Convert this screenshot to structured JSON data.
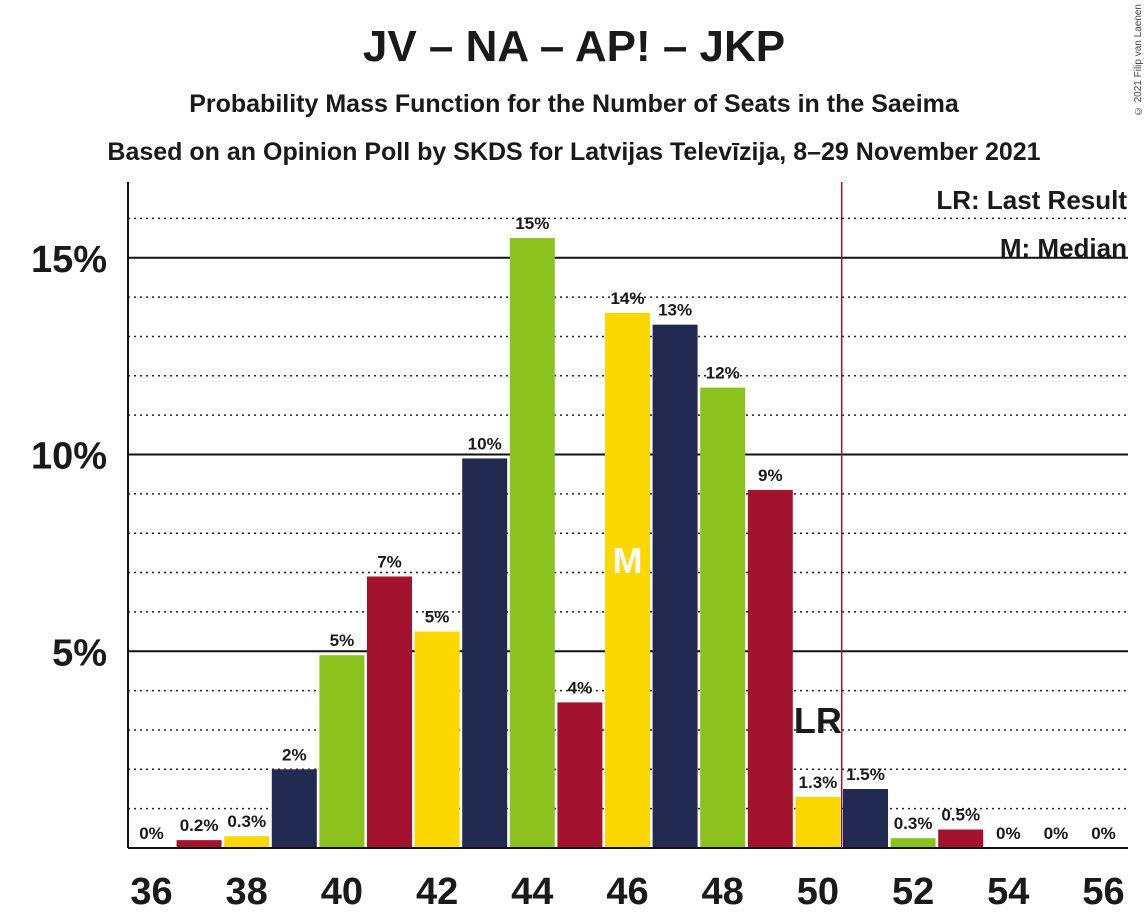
{
  "title": "JV – NA – AP! – JKP",
  "subtitle": "Probability Mass Function for the Number of Seats in the Saeima",
  "subtitle2": "Based on an Opinion Poll by SKDS for Latvijas Televīzija, 8–29 November 2021",
  "copyright": "© 2021 Filip van Laenen",
  "legend": {
    "last_result": "LR: Last Result",
    "median": "M: Median"
  },
  "markers": {
    "median_label": "M",
    "median_seat": 46,
    "last_result_label": "LR",
    "last_result_seat": 50
  },
  "colors": {
    "navy": "#232a52",
    "green": "#8bc21e",
    "crimson": "#a31330",
    "yellow": "#fcd800",
    "lr_line": "#a31330"
  },
  "chart_data": {
    "type": "bar",
    "x": [
      36,
      37,
      38,
      39,
      40,
      41,
      42,
      43,
      44,
      45,
      46,
      47,
      48,
      49,
      50,
      51,
      52,
      53,
      54,
      55,
      56
    ],
    "values": [
      0,
      0.2,
      0.3,
      2.0,
      4.9,
      6.9,
      5.5,
      9.9,
      15.5,
      3.7,
      13.6,
      13.3,
      11.7,
      9.1,
      1.3,
      1.5,
      0.25,
      0.47,
      0,
      0,
      0
    ],
    "value_labels": [
      "0%",
      "0.2%",
      "0.3%",
      "2%",
      "5%",
      "7%",
      "5%",
      "10%",
      "15%",
      "4%",
      "14%",
      "13%",
      "12%",
      "9%",
      "1.3%",
      "1.5%",
      "0.3%",
      "0.5%",
      "0%",
      "0%",
      "0%"
    ],
    "bar_colors": [
      "navy",
      "crimson",
      "yellow",
      "navy",
      "green",
      "crimson",
      "yellow",
      "navy",
      "green",
      "crimson",
      "yellow",
      "navy",
      "green",
      "crimson",
      "yellow",
      "navy",
      "green",
      "crimson",
      "yellow",
      "navy",
      "green"
    ],
    "x_tick_labels": [
      "36",
      "38",
      "40",
      "42",
      "44",
      "46",
      "48",
      "50",
      "52",
      "54",
      "56"
    ],
    "x_ticks": [
      36,
      38,
      40,
      42,
      44,
      46,
      48,
      50,
      52,
      54,
      56
    ],
    "y_ticks": [
      5,
      10,
      15
    ],
    "y_tick_labels": [
      "5%",
      "10%",
      "15%"
    ],
    "ylim": [
      0,
      16.9
    ],
    "grid": "dotted minor every 1%, solid major every 5%",
    "legend_position": "top-right"
  }
}
